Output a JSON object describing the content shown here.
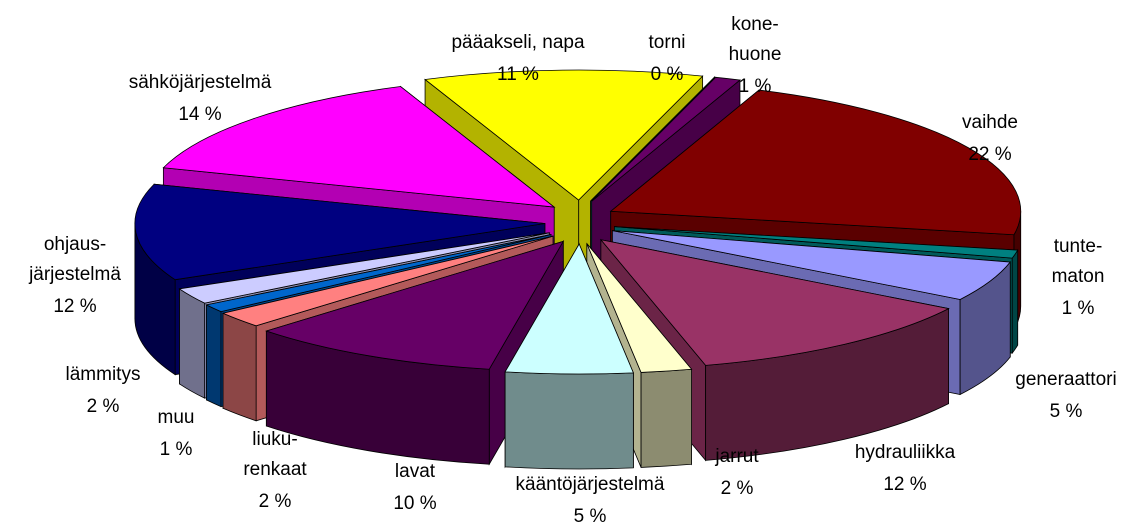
{
  "chart_data": {
    "type": "pie3d",
    "categories": [
      [
        "pääakseli, napa"
      ],
      [
        "torni"
      ],
      [
        "kone-",
        "huone"
      ],
      [
        "vaihde"
      ],
      [
        "tunte-",
        "maton"
      ],
      [
        "generaattori"
      ],
      [
        "hydrauliikka"
      ],
      [
        "jarrut"
      ],
      [
        "kääntöjärjestelmä"
      ],
      [
        "lavat"
      ],
      [
        "liuku-",
        "renkaat"
      ],
      [
        "muu"
      ],
      [
        "lämmitys"
      ],
      [
        "ohjaus-",
        "järjestelmä"
      ],
      [
        "sähköjärjestelmä"
      ]
    ],
    "values": [
      11,
      0,
      1,
      22,
      1,
      5,
      12,
      2,
      5,
      10,
      2,
      1,
      2,
      12,
      14
    ],
    "value_labels": [
      "11 %",
      "0 %",
      "1 %",
      "22 %",
      "1 %",
      "5 %",
      "12 %",
      "2 %",
      "5 %",
      "10 %",
      "2 %",
      "1 %",
      "2 %",
      "12 %",
      "14 %"
    ],
    "colors": [
      "#ffff00",
      "#00ffff",
      "#660066",
      "#800000",
      "#008080",
      "#9999ff",
      "#993366",
      "#ffffcc",
      "#ccffff",
      "#660066",
      "#ff8080",
      "#0066cc",
      "#ccccff",
      "#000080",
      "#ff00ff"
    ]
  }
}
